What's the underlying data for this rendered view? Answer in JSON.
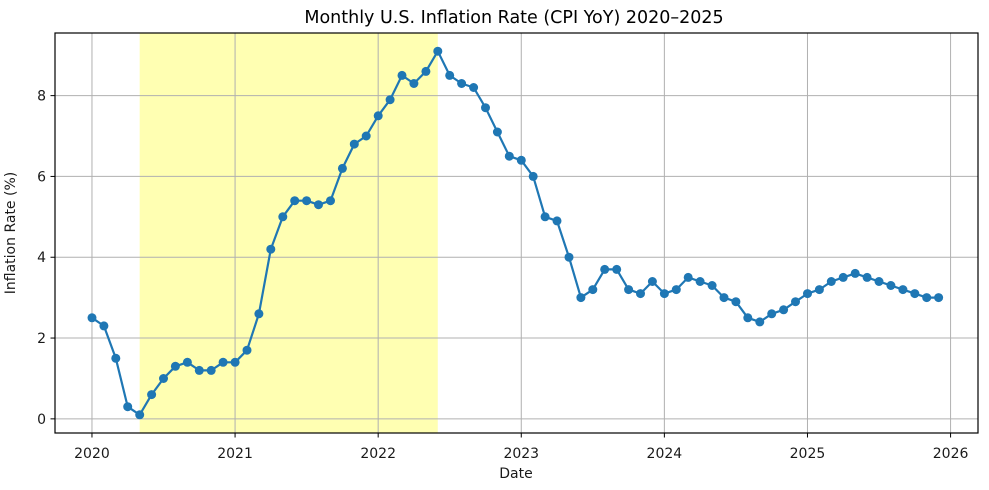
{
  "chart_data": {
    "type": "line",
    "title": "Monthly U.S. Inflation Rate (CPI YoY) 2020–2025",
    "xlabel": "Date",
    "ylabel": "Inflation Rate (%)",
    "frequency": "monthly",
    "x_start": "2020-01",
    "x_end": "2025-12",
    "series": [
      {
        "name": "CPI YoY inflation rate (%)",
        "color": "#1f77b4",
        "marker": "circle",
        "values": [
          2.5,
          2.3,
          1.5,
          0.3,
          0.1,
          0.6,
          1.0,
          1.3,
          1.4,
          1.2,
          1.2,
          1.4,
          1.4,
          1.7,
          2.6,
          4.2,
          5.0,
          5.4,
          5.4,
          5.3,
          5.4,
          6.2,
          6.8,
          7.0,
          7.5,
          7.9,
          8.5,
          8.3,
          8.6,
          9.1,
          8.5,
          8.3,
          8.2,
          7.7,
          7.1,
          6.5,
          6.4,
          6.0,
          5.0,
          4.9,
          4.0,
          3.0,
          3.2,
          3.7,
          3.7,
          3.2,
          3.1,
          3.4,
          3.1,
          3.2,
          3.5,
          3.4,
          3.3,
          3.0,
          2.9,
          2.5,
          2.4,
          2.6,
          2.7,
          2.9,
          3.1,
          3.2,
          3.4,
          3.5,
          3.6,
          3.5,
          3.4,
          3.3,
          3.2,
          3.1,
          3.0,
          3.0
        ]
      }
    ],
    "x_ticks": {
      "positions_months": [
        0,
        12,
        24,
        36,
        48,
        60,
        72
      ],
      "labels": [
        "2020",
        "2021",
        "2022",
        "2023",
        "2024",
        "2025",
        "2026"
      ]
    },
    "y_ticks": [
      0,
      2,
      4,
      6,
      8
    ],
    "ylim": [
      -0.35,
      9.55
    ],
    "xlim_months": [
      -3.1,
      74.3
    ],
    "grid": true,
    "grid_color": "#b0b0b0",
    "legend": "none",
    "highlight_span": {
      "start": "2020-05",
      "end": "2022-06",
      "color": "rgba(255, 255, 0, 0.3)"
    }
  }
}
